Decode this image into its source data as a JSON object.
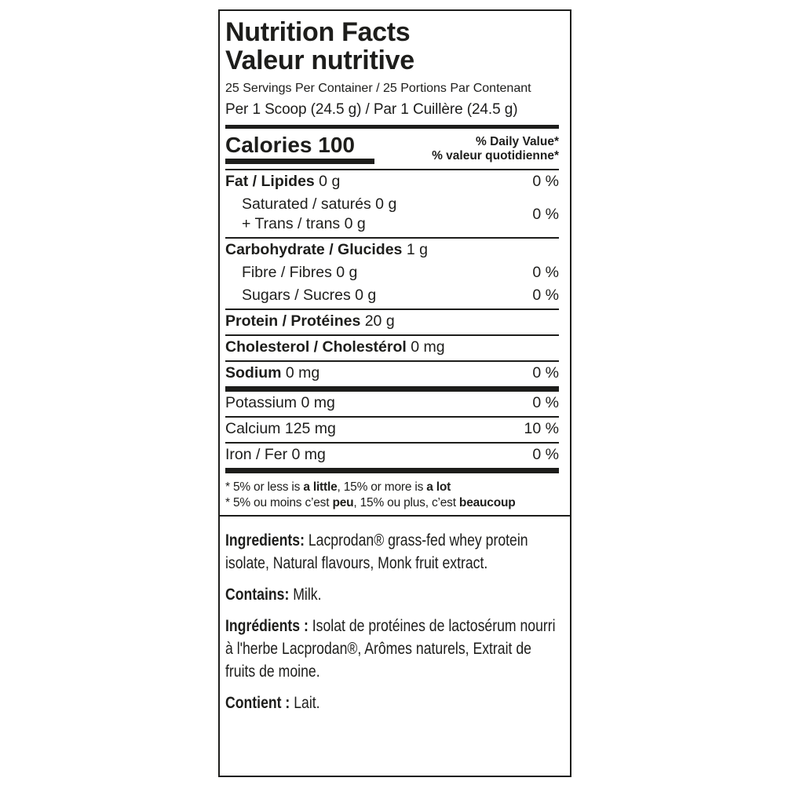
{
  "colors": {
    "text": "#1d1d1b",
    "background": "#ffffff"
  },
  "label": {
    "title_en": "Nutrition Facts",
    "title_fr": "Valeur nutritive",
    "servings_line": "25 Servings Per Container / 25 Portions Par Contenant",
    "serving_size_line": "Per 1 Scoop (24.5 g) / Par 1 Cuillère (24.5 g)",
    "calories": {
      "text": "Calories 100"
    },
    "daily_value_header": {
      "en": "% Daily Value*",
      "fr": "% valeur quotidienne*"
    },
    "rows": [
      {
        "bold": "Fat / Lipides",
        "text": " 0 g",
        "dv": "0 %"
      },
      {
        "line1": "Saturated / saturés 0 g",
        "line2": "+ Trans / trans 0 g",
        "dv": "0 %"
      },
      {
        "bold": "Carbohydrate / Glucides",
        "text": " 1 g",
        "dv": ""
      },
      {
        "bold": "",
        "text": "Fibre / Fibres 0 g",
        "dv": "0 %"
      },
      {
        "bold": "",
        "text": "Sugars / Sucres 0 g",
        "dv": "0 %"
      },
      {
        "bold": "Protein / Protéines",
        "text": " 20 g",
        "dv": ""
      },
      {
        "bold": "Cholesterol / Cholestérol",
        "text": " 0 mg",
        "dv": ""
      },
      {
        "bold": "Sodium",
        "text": " 0 mg",
        "dv": "0 %"
      },
      {
        "bold": "",
        "text": "Potassium 0 mg",
        "dv": "0 %"
      },
      {
        "bold": "",
        "text": "Calcium 125 mg",
        "dv": "10 %"
      },
      {
        "bold": "",
        "text": "Iron / Fer 0 mg",
        "dv": "0 %"
      }
    ],
    "footnotes": {
      "en": {
        "p1": "* 5% or less is ",
        "b1": "a little",
        "p2": ", 15% or more is ",
        "b2": "a lot"
      },
      "fr": {
        "p1": "* 5% ou moins c’est ",
        "b1": "peu",
        "p2": ", 15% ou plus, c’est ",
        "b2": "beaucoup"
      }
    },
    "ingredients": [
      {
        "bold": "Ingredients:",
        "text": " Lacprodan® grass-fed whey protein isolate, Natural flavours, Monk fruit extract."
      },
      {
        "bold": "Contains:",
        "text": " Milk."
      },
      {
        "bold": "Ingrédients :",
        "text": " Isolat de protéines de lactosérum nourri à l'herbe Lacprodan®, Arômes naturels, Extrait de fruits de moine."
      },
      {
        "bold": "Contient :",
        "text": " Lait."
      }
    ]
  }
}
